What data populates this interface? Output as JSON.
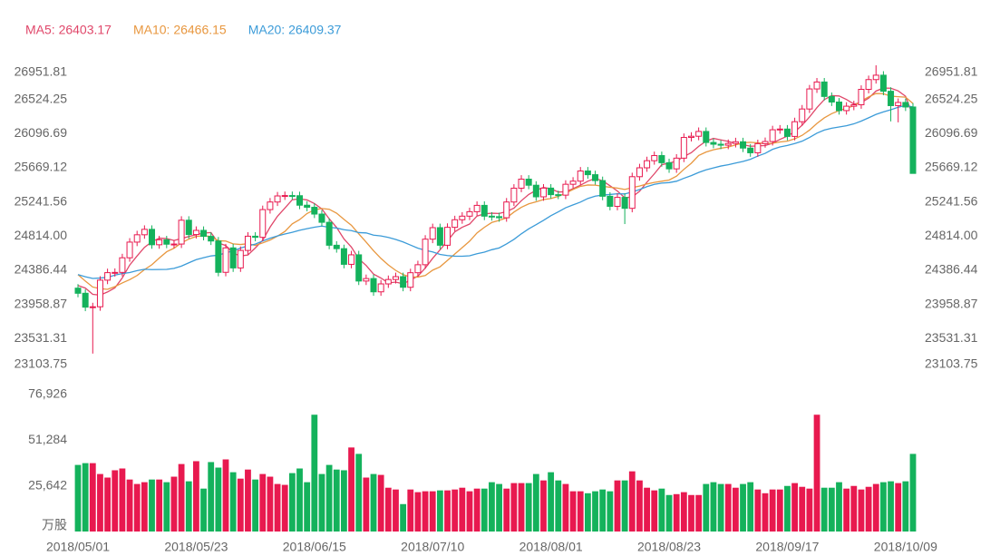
{
  "chart_data": {
    "type": "candlestick",
    "up_color": "#e8194f",
    "down_color": "#14b25c",
    "categories": [
      "2018/05/01",
      null,
      null,
      null,
      null,
      null,
      null,
      null,
      null,
      null,
      null,
      null,
      null,
      null,
      null,
      null,
      "2018/05/23",
      null,
      null,
      null,
      null,
      null,
      null,
      null,
      null,
      null,
      null,
      null,
      null,
      null,
      null,
      null,
      "2018/06/15",
      null,
      null,
      null,
      null,
      null,
      null,
      null,
      null,
      null,
      null,
      null,
      null,
      null,
      null,
      null,
      "2018/07/10",
      null,
      null,
      null,
      null,
      null,
      null,
      null,
      null,
      null,
      null,
      null,
      null,
      null,
      null,
      null,
      "2018/08/01",
      null,
      null,
      null,
      null,
      null,
      null,
      null,
      null,
      null,
      null,
      null,
      null,
      null,
      null,
      null,
      "2018/08/23",
      null,
      null,
      null,
      null,
      null,
      null,
      null,
      null,
      null,
      null,
      null,
      null,
      null,
      null,
      null,
      "2018/09/17",
      null,
      null,
      null,
      null,
      null,
      null,
      null,
      null,
      null,
      null,
      null,
      null,
      null,
      null,
      null,
      "2018/10/09",
      null
    ],
    "candles": [
      [
        24163,
        24213,
        24049,
        24099
      ],
      [
        24099,
        24149,
        23875,
        23925
      ],
      [
        23925,
        23980,
        23344,
        23930
      ],
      [
        23930,
        24313,
        23880,
        24263
      ],
      [
        24263,
        24407,
        24213,
        24357
      ],
      [
        24357,
        24410,
        24307,
        24360
      ],
      [
        24360,
        24593,
        24310,
        24543
      ],
      [
        24543,
        24789,
        24493,
        24739
      ],
      [
        24739,
        24881,
        24689,
        24831
      ],
      [
        24831,
        24949,
        24781,
        24899
      ],
      [
        24899,
        24949,
        24656,
        24706
      ],
      [
        24706,
        24818,
        24656,
        24768
      ],
      [
        24768,
        24818,
        24663,
        24713
      ],
      [
        24713,
        24765,
        24663,
        24715
      ],
      [
        24715,
        25063,
        24665,
        25013
      ],
      [
        25013,
        25063,
        24784,
        24834
      ],
      [
        24834,
        24936,
        24784,
        24886
      ],
      [
        24886,
        24936,
        24761,
        24811
      ],
      [
        24811,
        24861,
        24703,
        24753
      ],
      [
        24753,
        24803,
        24311,
        24361
      ],
      [
        24361,
        24717,
        24311,
        24667
      ],
      [
        24667,
        24717,
        24366,
        24416
      ],
      [
        24416,
        24685,
        24366,
        24635
      ],
      [
        24635,
        24863,
        24585,
        24813
      ],
      [
        24813,
        24863,
        24749,
        24799
      ],
      [
        24799,
        25196,
        24749,
        25146
      ],
      [
        25146,
        25291,
        25096,
        25241
      ],
      [
        25241,
        25367,
        25191,
        25317
      ],
      [
        25317,
        25372,
        25267,
        25322
      ],
      [
        25322,
        25372,
        25270,
        25320
      ],
      [
        25320,
        25370,
        25151,
        25201
      ],
      [
        25201,
        25251,
        25125,
        25175
      ],
      [
        25175,
        25225,
        25040,
        25090
      ],
      [
        25090,
        25140,
        24937,
        24987
      ],
      [
        24987,
        25037,
        24650,
        24700
      ],
      [
        24700,
        24750,
        24607,
        24657
      ],
      [
        24657,
        24707,
        24411,
        24461
      ],
      [
        24461,
        24630,
        24411,
        24580
      ],
      [
        24580,
        24630,
        24202,
        24252
      ],
      [
        24252,
        24333,
        24202,
        24283
      ],
      [
        24283,
        24333,
        24067,
        24117
      ],
      [
        24117,
        24266,
        24067,
        24216
      ],
      [
        24216,
        24321,
        24166,
        24271
      ],
      [
        24271,
        24357,
        24221,
        24307
      ],
      [
        24307,
        24357,
        24124,
        24174
      ],
      [
        24174,
        24406,
        24124,
        24356
      ],
      [
        24356,
        24506,
        24306,
        24456
      ],
      [
        24456,
        24826,
        24406,
        24776
      ],
      [
        24776,
        24970,
        24726,
        24920
      ],
      [
        24920,
        24970,
        24650,
        24700
      ],
      [
        24700,
        24974,
        24650,
        24924
      ],
      [
        24924,
        25069,
        24874,
        25019
      ],
      [
        25019,
        25114,
        24969,
        25064
      ],
      [
        25064,
        25170,
        25014,
        25120
      ],
      [
        25120,
        25249,
        25070,
        25199
      ],
      [
        25199,
        25249,
        25014,
        25064
      ],
      [
        25064,
        25114,
        25008,
        25058
      ],
      [
        25058,
        25108,
        24994,
        25044
      ],
      [
        25044,
        25291,
        24994,
        25241
      ],
      [
        25241,
        25464,
        25191,
        25414
      ],
      [
        25414,
        25577,
        25364,
        25527
      ],
      [
        25527,
        25577,
        25401,
        25451
      ],
      [
        25451,
        25501,
        25256,
        25306
      ],
      [
        25306,
        25465,
        25256,
        25415
      ],
      [
        25415,
        25465,
        25283,
        25333
      ],
      [
        25333,
        25383,
        25277,
        25327
      ],
      [
        25327,
        25513,
        25277,
        25463
      ],
      [
        25463,
        25552,
        25413,
        25502
      ],
      [
        25502,
        25679,
        25452,
        25629
      ],
      [
        25629,
        25679,
        25533,
        25583
      ],
      [
        25583,
        25633,
        25459,
        25509
      ],
      [
        25509,
        25559,
        25263,
        25313
      ],
      [
        25313,
        25363,
        25137,
        25187
      ],
      [
        25187,
        25349,
        25137,
        25299
      ],
      [
        25299,
        25349,
        24965,
        25162
      ],
      [
        25162,
        25608,
        25112,
        25558
      ],
      [
        25558,
        25719,
        25508,
        25669
      ],
      [
        25669,
        25808,
        25619,
        25758
      ],
      [
        25758,
        25872,
        25708,
        25822
      ],
      [
        25822,
        25872,
        25683,
        25733
      ],
      [
        25733,
        25783,
        25606,
        25656
      ],
      [
        25656,
        25840,
        25606,
        25790
      ],
      [
        25790,
        26099,
        25740,
        26049
      ],
      [
        26049,
        26114,
        25999,
        26064
      ],
      [
        26064,
        26174,
        26014,
        26124
      ],
      [
        26124,
        26174,
        25936,
        25986
      ],
      [
        25986,
        26036,
        25914,
        25964
      ],
      [
        25964,
        26014,
        25902,
        25952
      ],
      [
        25952,
        26024,
        25902,
        25974
      ],
      [
        25974,
        26045,
        25924,
        25995
      ],
      [
        25995,
        26045,
        25866,
        25916
      ],
      [
        25916,
        25966,
        25807,
        25857
      ],
      [
        25857,
        26021,
        25807,
        25971
      ],
      [
        25971,
        26048,
        25921,
        25998
      ],
      [
        25998,
        26195,
        25948,
        26145
      ],
      [
        26145,
        26204,
        26095,
        26154
      ],
      [
        26154,
        26204,
        26012,
        26062
      ],
      [
        26062,
        26296,
        26012,
        26246
      ],
      [
        26246,
        26455,
        26196,
        26405
      ],
      [
        26405,
        26706,
        26355,
        26656
      ],
      [
        26656,
        26793,
        26606,
        26743
      ],
      [
        26743,
        26793,
        26512,
        26562
      ],
      [
        26562,
        26612,
        26442,
        26492
      ],
      [
        26492,
        26542,
        26335,
        26385
      ],
      [
        26385,
        26490,
        26335,
        26440
      ],
      [
        26440,
        26508,
        26390,
        26458
      ],
      [
        26458,
        26701,
        26408,
        26651
      ],
      [
        26651,
        26823,
        26601,
        26773
      ],
      [
        26773,
        26951.81,
        26723,
        26828
      ],
      [
        26828,
        26878,
        26577,
        26627
      ],
      [
        26627,
        26677,
        26250,
        26447
      ],
      [
        26447,
        26537,
        26238,
        26487
      ],
      [
        26487,
        26537,
        26380,
        26430
      ],
      [
        26430,
        26480,
        25598,
        25599
      ]
    ],
    "series": [
      {
        "name": "MA5: 26403.17",
        "color": "#e0476a",
        "values": [
          24196,
          24164,
          24086,
          24076,
          24115,
          24167,
          24291,
          24452,
          24566,
          24674,
          24744,
          24789,
          24783,
          24760,
          24783,
          24809,
          24832,
          24852,
          24859,
          24729,
          24696,
          24602,
          24566,
          24578,
          24666,
          24762,
          24927,
          25063,
          25165,
          25269,
          25280,
          25267,
          25222,
          25155,
          25031,
          24922,
          24779,
          24677,
          24530,
          24447,
          24339,
          24290,
          24228,
          24239,
          24217,
          24265,
          24313,
          24414,
          24536,
          24642,
          24755,
          24868,
          24925,
          24965,
          25065,
          25093,
          25101,
          25097,
          25121,
          25164,
          25257,
          25335,
          25388,
          25423,
          25406,
          25366,
          25369,
          25408,
          25451,
          25501,
          25537,
          25507,
          25444,
          25378,
          25294,
          25304,
          25375,
          25489,
          25594,
          25708,
          25728,
          25752,
          25810,
          25858,
          25937,
          26003,
          26037,
          26018,
          26000,
          25974,
          25960,
          25939,
          25943,
          25947,
          25977,
          26025,
          26066,
          26121,
          26202,
          26305,
          26422,
          26522,
          26572,
          26568,
          26524,
          26467,
          26485,
          26541,
          26630,
          26667,
          26665,
          26632,
          26564,
          26318
        ]
      },
      {
        "name": "MA10: 26466.15",
        "color": "#e8973f",
        "values": [
          24333,
          24251,
          24177,
          24157,
          24148,
          24182,
          24228,
          24269,
          24321,
          24395,
          24456,
          24540,
          24618,
          24663,
          24729,
          24777,
          24811,
          24818,
          24810,
          24756,
          24753,
          24717,
          24709,
          24719,
          24698,
          24729,
          24765,
          24815,
          24872,
          24968,
          25021,
          25097,
          25143,
          25160,
          25150,
          25101,
          25023,
          24950,
          24843,
          24739,
          24631,
          24535,
          24453,
          24385,
          24332,
          24302,
          24302,
          24321,
          24388,
          24430,
          24510,
          24591,
          24670,
          24751,
          24854,
          24924,
          24985,
          25011,
          25043,
          25115,
          25175,
          25218,
          25243,
          25272,
          25285,
          25312,
          25352,
          25398,
          25437,
          25454,
          25452,
          25438,
          25426,
          25415,
          25398,
          25421,
          25441,
          25467,
          25486,
          25501,
          25516,
          25564,
          25650,
          25726,
          25823,
          25866,
          25895,
          25914,
          25929,
          25956,
          25982,
          25988,
          25981,
          25974,
          25976,
          25993,
          26003,
          26032,
          26075,
          26141,
          26224,
          26294,
          26347,
          26385,
          26415,
          26445,
          26504,
          26557,
          26599,
          26596,
          26566,
          26559,
          26553,
          26474
        ]
      },
      {
        "name": "MA20: 26409.37",
        "color": "#3b9bd8",
        "values": [
          24332,
          24306,
          24284,
          24289,
          24299,
          24326,
          24346,
          24358,
          24382,
          24399,
          24395,
          24396,
          24398,
          24410,
          24439,
          24480,
          24520,
          24544,
          24566,
          24576,
          24605,
          24629,
          24664,
          24691,
          24714,
          24753,
          24788,
          24817,
          24841,
          24862,
          24887,
          24907,
          24926,
          24940,
          24924,
          24915,
          24894,
          24883,
          24858,
          24854,
          24826,
          24816,
          24798,
          24773,
          24741,
          24702,
          24663,
          24636,
          24616,
          24585,
          24571,
          24563,
          24562,
          24568,
          24593,
          24613,
          24644,
          24666,
          24716,
          24773,
          24843,
          24905,
          24957,
          25012,
          25070,
          25118,
          25169,
          25205,
          25240,
          25285,
          25314,
          25328,
          25335,
          25344,
          25342,
          25367,
          25397,
          25433,
          25462,
          25478,
          25484,
          25501,
          25538,
          25571,
          25611,
          25644,
          25668,
          25691,
          25708,
          25729,
          25749,
          25776,
          25816,
          25850,
          25900,
          25930,
          25949,
          25973,
          26002,
          26049,
          26103,
          26141,
          26164,
          26180,
          26196,
          26219,
          26254,
          26295,
          26337,
          26369,
          26395,
          26427,
          26450,
          26430
        ]
      }
    ],
    "ylim": [
      23103.75,
      26951.81
    ],
    "yticks": [
      23103.75,
      23531.31,
      23958.87,
      24386.44,
      {
        "value": 24814,
        "label": "24814.00"
      },
      25241.56,
      25669.12,
      26096.69,
      26524.25,
      26951.81
    ],
    "volume": {
      "unit": "万股",
      "ylim": [
        0,
        76926
      ],
      "yticks": [
        {
          "value": 25642,
          "label": "25,642"
        },
        {
          "value": 51284,
          "label": "51,284"
        },
        {
          "value": 76926,
          "label": "76,926"
        }
      ],
      "values": [
        37400,
        38400,
        38400,
        32300,
        30300,
        34400,
        35400,
        29200,
        26700,
        27700,
        29200,
        29200,
        27700,
        30800,
        37900,
        28200,
        39500,
        24100,
        39000,
        35900,
        40500,
        33300,
        29700,
        34800,
        29200,
        32300,
        30800,
        26700,
        26200,
        32800,
        35400,
        27700,
        65600,
        32300,
        37400,
        34800,
        34400,
        47200,
        43600,
        30300,
        32300,
        31800,
        24600,
        23600,
        15400,
        23600,
        22100,
        22600,
        22600,
        23100,
        23100,
        23600,
        24600,
        22600,
        24100,
        24100,
        27700,
        26700,
        24100,
        27200,
        27200,
        27200,
        32300,
        28700,
        33300,
        28700,
        26700,
        22600,
        22600,
        21500,
        22600,
        23600,
        22600,
        28700,
        28700,
        33800,
        28700,
        24600,
        23100,
        24100,
        20500,
        21000,
        22100,
        20500,
        20500,
        26700,
        27700,
        26700,
        26700,
        24600,
        26700,
        27700,
        23600,
        21500,
        23600,
        23600,
        25600,
        27200,
        25100,
        24100,
        65600,
        24600,
        24600,
        27700,
        24100,
        25600,
        23600,
        25100,
        26700,
        27700,
        28200,
        27200,
        28200,
        43600
      ]
    }
  }
}
